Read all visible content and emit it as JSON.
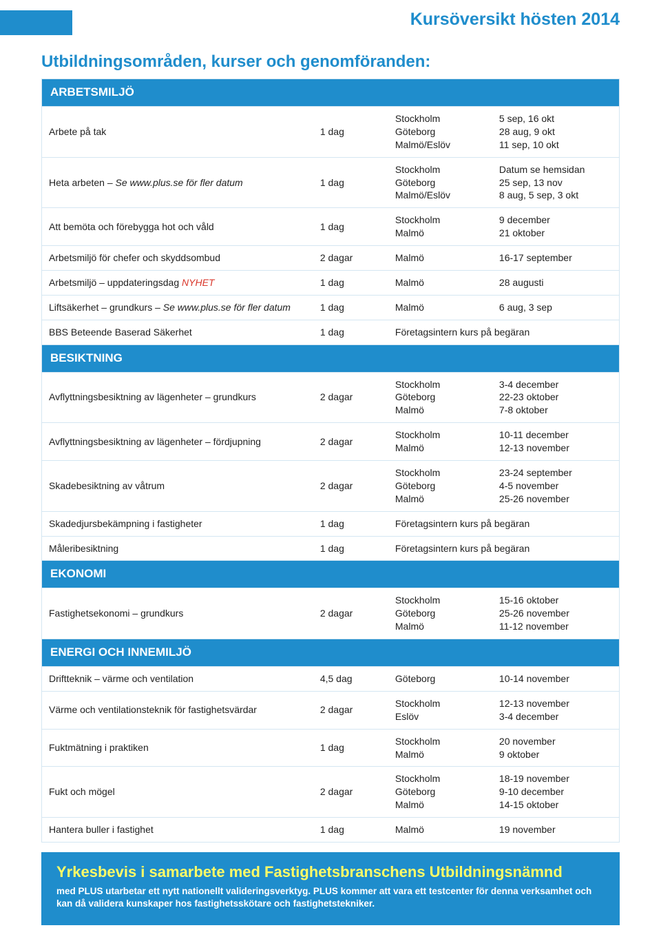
{
  "header_title": "Kursöversikt hösten 2014",
  "page_heading": "Utbildningsområden, kurser och genomföranden:",
  "colors": {
    "accent": "#1f8dcc",
    "nyhet": "#d9372b",
    "footer_title": "#fffb66",
    "row_border": "#d4e6f2"
  },
  "sections": [
    {
      "title": "ARBETSMILJÖ",
      "rows": [
        {
          "name": "Arbete på tak",
          "duration": "1 dag",
          "locations": "Stockholm\nGöteborg\nMalmö/Eslöv",
          "dates": "5 sep, 16 okt\n28 aug, 9 okt\n11 sep, 10 okt"
        },
        {
          "name": "Heta arbeten – ",
          "italic_suffix": "Se www.plus.se för fler datum",
          "duration": "1 dag",
          "locations": "Stockholm\nGöteborg\nMalmö/Eslöv",
          "dates": "Datum se hemsidan\n25 sep, 13 nov\n8 aug, 5 sep, 3 okt"
        },
        {
          "name": "Att bemöta och förebygga hot och våld",
          "duration": "1 dag",
          "locations": "Stockholm\nMalmö",
          "dates": "9 december\n21 oktober"
        },
        {
          "name": "Arbetsmiljö för chefer och skyddsombud",
          "duration": "2 dagar",
          "locations": "Malmö",
          "dates": "16-17 september"
        },
        {
          "name": "Arbetsmiljö – uppdateringsdag ",
          "nyhet": "NYHET",
          "duration": "1 dag",
          "locations": "Malmö",
          "dates": "28 augusti"
        },
        {
          "name": "Liftsäkerhet – grundkurs – ",
          "italic_suffix": "Se www.plus.se för fler datum",
          "duration": "1 dag",
          "locations": "Malmö",
          "dates": "6 aug, 3 sep"
        },
        {
          "name": "BBS Beteende Baserad Säkerhet",
          "duration": "1 dag",
          "locations_dates_merged": "Företagsintern kurs på begäran"
        }
      ]
    },
    {
      "title": "BESIKTNING",
      "rows": [
        {
          "name": "Avflyttningsbesiktning av lägenheter – grundkurs",
          "duration": "2 dagar",
          "locations": "Stockholm\nGöteborg\nMalmö",
          "dates": "3-4 december\n22-23 oktober\n7-8 oktober"
        },
        {
          "name": "Avflyttningsbesiktning av lägenheter – fördjupning",
          "duration": "2 dagar",
          "locations": "Stockholm\nMalmö",
          "dates": "10-11 december\n12-13 november"
        },
        {
          "name": "Skadebesiktning av våtrum",
          "duration": "2 dagar",
          "locations": "Stockholm\nGöteborg\nMalmö",
          "dates": "23-24 september\n4-5 november\n25-26 november"
        },
        {
          "name": "Skadedjursbekämpning i fastigheter",
          "duration": "1 dag",
          "locations_dates_merged": "Företagsintern kurs på begäran"
        },
        {
          "name": "Måleribesiktning",
          "duration": "1 dag",
          "locations_dates_merged": "Företagsintern kurs på begäran"
        }
      ]
    },
    {
      "title": "EKONOMI",
      "rows": [
        {
          "name": "Fastighetsekonomi – grundkurs",
          "duration": "2 dagar",
          "locations": "Stockholm\nGöteborg\nMalmö",
          "dates": "15-16 oktober\n25-26 november\n11-12 november"
        }
      ]
    },
    {
      "title": "ENERGI OCH INNEMILJÖ",
      "rows": [
        {
          "name": "Driftteknik – värme och ventilation",
          "duration": "4,5 dag",
          "locations": "Göteborg",
          "dates": "10-14 november"
        },
        {
          "name": "Värme och ventilationsteknik för fastighetsvärdar",
          "duration": "2 dagar",
          "locations": "Stockholm\nEslöv",
          "dates": "12-13 november\n3-4 december"
        },
        {
          "name": "Fuktmätning i praktiken",
          "duration": "1 dag",
          "locations": "Stockholm\nMalmö",
          "dates": "20 november\n9 oktober"
        },
        {
          "name": "Fukt och mögel",
          "duration": "2 dagar",
          "locations": "Stockholm\nGöteborg\nMalmö",
          "dates": "18-19 november\n9-10 december\n14-15 oktober"
        },
        {
          "name": "Hantera buller i fastighet",
          "duration": "1 dag",
          "locations": "Malmö",
          "dates": "19 november"
        }
      ]
    }
  ],
  "footer": {
    "title": "Yrkesbevis i samarbete med Fastighetsbranschens Utbildningsnämnd",
    "body": "med PLUS utarbetar ett nytt nationellt valideringsverktyg. PLUS kommer att vara ett testcenter för denna verksamhet och kan då validera kunskaper hos fastighetsskötare och fastighetstekniker."
  }
}
